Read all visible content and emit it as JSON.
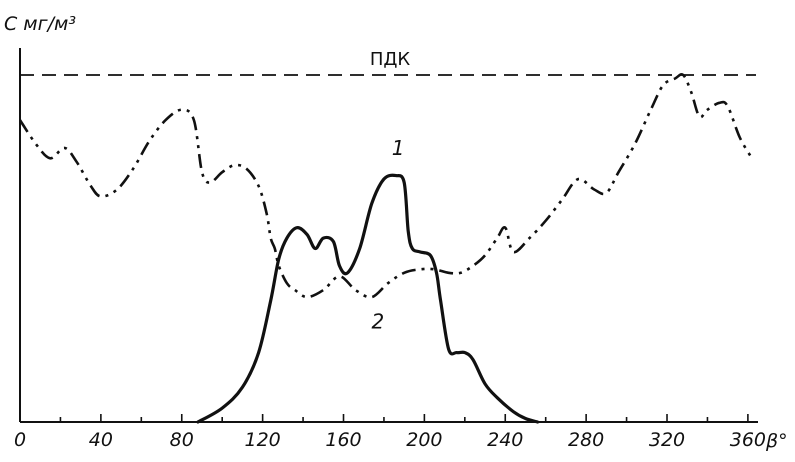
{
  "chart_data": {
    "type": "line",
    "ylabel": "C мг/м³",
    "xlabel": "β°",
    "xlim": [
      0,
      365
    ],
    "ylim": [
      0,
      1.0
    ],
    "xticks": [
      0,
      40,
      80,
      120,
      160,
      200,
      240,
      280,
      320,
      360
    ],
    "xtick_labels": [
      "0",
      "40",
      "80",
      "120",
      "160",
      "200",
      "240",
      "280",
      "320",
      "360"
    ],
    "grid": false,
    "reference_line": {
      "label": "ПДК",
      "value": 1.0
    },
    "series": [
      {
        "name": "1",
        "style": "solid",
        "x": [
          88,
          100,
          110,
          118,
          124,
          128,
          132,
          137,
          142,
          146,
          150,
          155,
          158,
          162,
          168,
          174,
          180,
          186,
          190,
          192,
          194,
          198,
          203,
          206,
          208,
          212,
          216,
          220,
          224,
          230,
          236,
          244,
          250,
          256
        ],
        "y": [
          0.0,
          0.04,
          0.1,
          0.2,
          0.35,
          0.47,
          0.53,
          0.56,
          0.54,
          0.5,
          0.53,
          0.52,
          0.45,
          0.43,
          0.5,
          0.63,
          0.7,
          0.71,
          0.69,
          0.55,
          0.5,
          0.49,
          0.48,
          0.43,
          0.35,
          0.21,
          0.2,
          0.2,
          0.18,
          0.11,
          0.07,
          0.03,
          0.01,
          0.0
        ]
      },
      {
        "name": "2",
        "style": "dash-dot-dot",
        "x": [
          0,
          8,
          15,
          22,
          28,
          35,
          40,
          48,
          56,
          64,
          72,
          80,
          86,
          90,
          94,
          100,
          106,
          112,
          118,
          122,
          124,
          126,
          128,
          132,
          136,
          142,
          150,
          158,
          166,
          174,
          182,
          190,
          198,
          205,
          212,
          218,
          224,
          230,
          236,
          240,
          244,
          252,
          260,
          268,
          276,
          284,
          290,
          296,
          304,
          312,
          318,
          324,
          328,
          332,
          336,
          340,
          346,
          350,
          356,
          362
        ],
        "y": [
          0.87,
          0.8,
          0.76,
          0.79,
          0.75,
          0.68,
          0.65,
          0.67,
          0.73,
          0.81,
          0.87,
          0.9,
          0.87,
          0.72,
          0.69,
          0.72,
          0.74,
          0.73,
          0.68,
          0.6,
          0.53,
          0.5,
          0.45,
          0.4,
          0.38,
          0.36,
          0.38,
          0.42,
          0.38,
          0.36,
          0.4,
          0.43,
          0.44,
          0.44,
          0.43,
          0.43,
          0.45,
          0.48,
          0.53,
          0.56,
          0.49,
          0.53,
          0.58,
          0.64,
          0.7,
          0.67,
          0.66,
          0.72,
          0.8,
          0.9,
          0.97,
          0.99,
          1.0,
          0.95,
          0.88,
          0.9,
          0.92,
          0.91,
          0.82,
          0.76
        ]
      }
    ]
  }
}
